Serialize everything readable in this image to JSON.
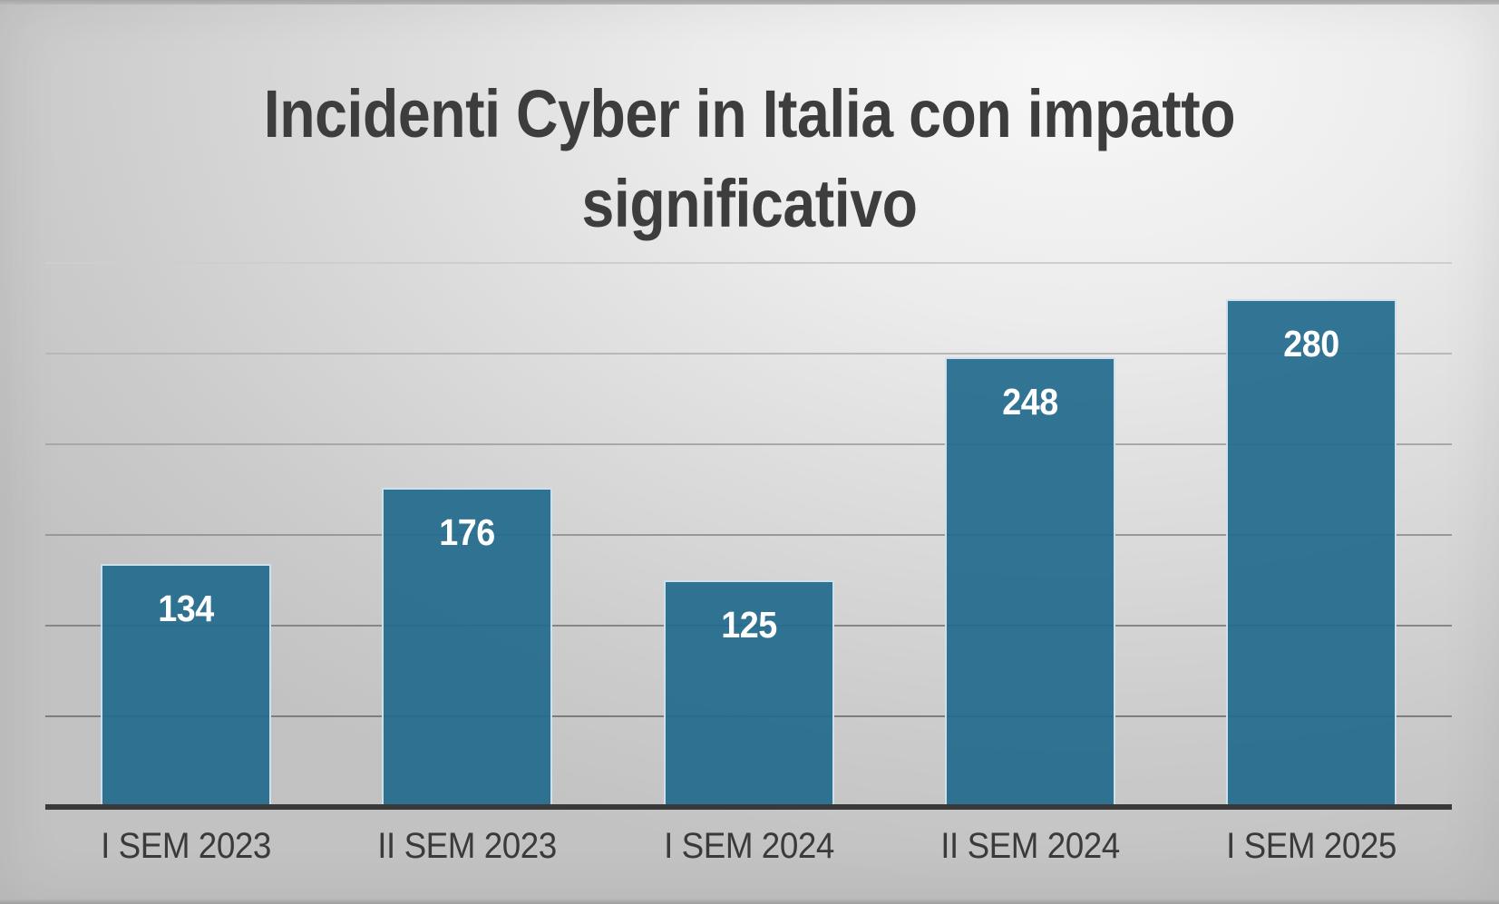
{
  "slide": {
    "title": "Incidenti Cyber in Italia con impatto significativo",
    "title_lines": [
      "Incidenti Cyber in Italia con impatto",
      "significativo"
    ]
  },
  "colors": {
    "title_text": "#3d3d3d",
    "tick_text": "#3a3a3a",
    "axis_line": "#393939",
    "bar_fill": "#2e7092",
    "bar_border": "#cde1ec",
    "value_label_text": "#ffffff",
    "background_light": "#f7f7f7",
    "background_dark": "#c2c2c2"
  },
  "chart_data": {
    "type": "bar",
    "title": "Incidenti Cyber in Italia con impatto significativo",
    "categories": [
      "I SEM 2023",
      "II SEM 2023",
      "I SEM 2024",
      "II SEM 2024",
      "I SEM 2025"
    ],
    "values": [
      134,
      176,
      125,
      248,
      280
    ],
    "xlabel": "",
    "ylabel": "",
    "ylim": [
      0,
      300
    ],
    "legend": "none",
    "grid": "horizontal",
    "data_labels": "inside-end",
    "gridlines": [
      {
        "value": 50,
        "color": "#7d7d7d"
      },
      {
        "value": 100,
        "color": "#868686"
      },
      {
        "value": 150,
        "color": "#989898"
      },
      {
        "value": 200,
        "color": "#a8a8a8"
      },
      {
        "value": 250,
        "color": "#b8b8b8"
      },
      {
        "value": 300,
        "color": "#cecece"
      }
    ]
  }
}
